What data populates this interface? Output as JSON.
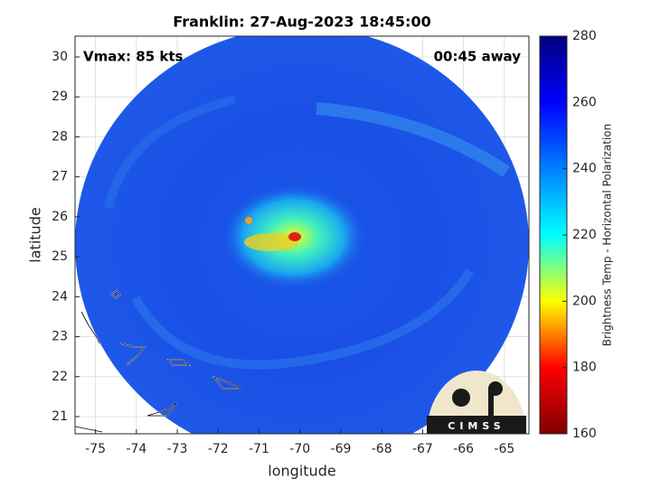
{
  "chart_data": {
    "type": "image",
    "title": "Franklin: 27-Aug-2023 18:45:00",
    "annotations": [
      "Vmax: 85 kts",
      "00:45 away"
    ],
    "xlabel": "longitude",
    "ylabel": "latitude",
    "xlim": [
      -75.5,
      -64.4
    ],
    "xticks": [
      -75,
      -74,
      -73,
      -72,
      -71,
      -70,
      -69,
      -68,
      -67,
      -66,
      -65
    ],
    "ylim": [
      20.57,
      30.52
    ],
    "yticks": [
      21,
      22,
      23,
      24,
      25,
      26,
      27,
      28,
      29,
      30
    ],
    "grid": true,
    "colorbar": {
      "label": "Brightness Temp - Horizontal Polarization",
      "lim": [
        160,
        280
      ],
      "ticks": [
        160,
        180,
        200,
        220,
        240,
        260,
        280
      ],
      "colormap": "jet"
    },
    "logo": "CIMSS"
  }
}
